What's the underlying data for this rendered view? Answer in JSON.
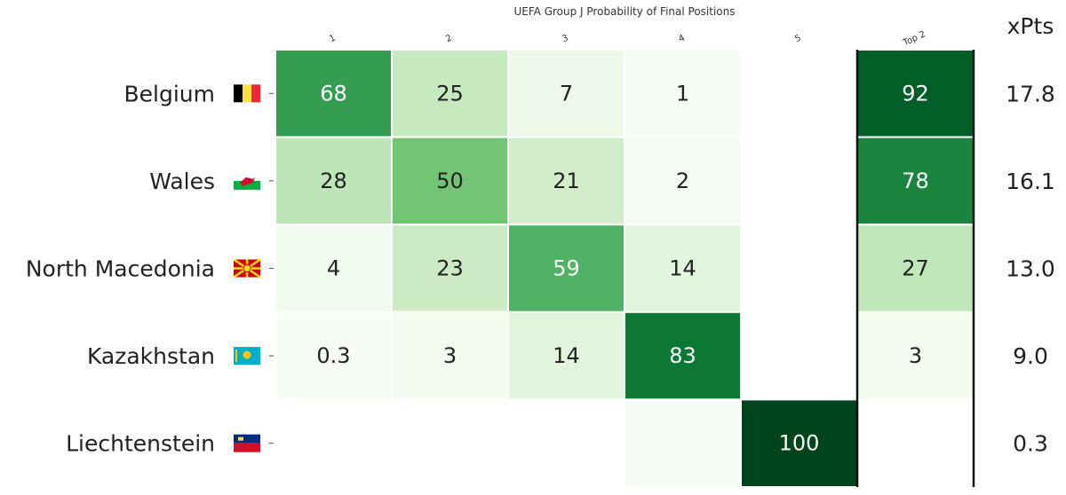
{
  "chart_data": {
    "type": "heatmap",
    "title": "UEFA Group J Probability of Final Positions",
    "columns": [
      "1",
      "2",
      "3",
      "4",
      "5",
      "Top 2"
    ],
    "rows": [
      {
        "team": "Belgium",
        "flag": "belgium-flag",
        "values": [
          68,
          25,
          7,
          1,
          null
        ],
        "top2": 92,
        "xpts": "17.8"
      },
      {
        "team": "Wales",
        "flag": "wales-flag",
        "values": [
          28,
          50,
          21,
          2,
          null
        ],
        "top2": 78,
        "xpts": "16.1"
      },
      {
        "team": "North Macedonia",
        "flag": "north-macedonia-flag",
        "values": [
          4,
          23,
          59,
          14,
          null
        ],
        "top2": 27,
        "xpts": "13.0"
      },
      {
        "team": "Kazakhstan",
        "flag": "kazakhstan-flag",
        "values": [
          0.3,
          3,
          14,
          83,
          null
        ],
        "top2": 3,
        "xpts": "9.0"
      },
      {
        "team": "Liechtenstein",
        "flag": "liechtenstein-flag",
        "values": [
          null,
          null,
          null,
          0,
          100
        ],
        "top2": null,
        "xpts": "0.3"
      }
    ],
    "xpts_header": "xPts",
    "colormap": "Greens",
    "value_range": [
      0,
      100
    ]
  }
}
